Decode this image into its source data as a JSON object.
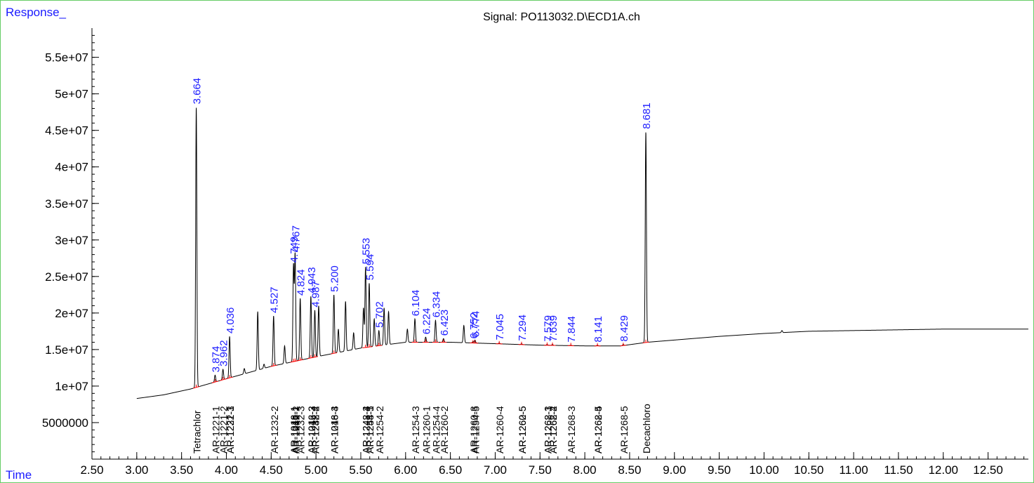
{
  "chart_data": {
    "type": "line",
    "title": "Signal: PO113032.D\\ECD1A.ch",
    "ylabel": "Response_",
    "xlabel": "Time",
    "xlim": [
      2.5,
      12.95
    ],
    "ylim": [
      0,
      59000000
    ],
    "x_ticks": [
      2.5,
      3.0,
      3.5,
      4.0,
      4.5,
      5.0,
      5.5,
      6.0,
      6.5,
      7.0,
      7.5,
      8.0,
      8.5,
      9.0,
      9.5,
      10.0,
      10.5,
      11.0,
      11.5,
      12.0,
      12.5
    ],
    "x_tick_labels": [
      "2.50",
      "3.00",
      "3.50",
      "4.00",
      "4.50",
      "5.00",
      "5.50",
      "6.00",
      "6.50",
      "7.00",
      "7.50",
      "8.00",
      "8.50",
      "9.00",
      "9.50",
      "10.00",
      "10.50",
      "11.00",
      "11.50",
      "12.00",
      "12.50"
    ],
    "y_ticks": [
      5000000,
      10000000,
      15000000,
      20000000,
      25000000,
      30000000,
      35000000,
      40000000,
      45000000,
      50000000,
      55000000
    ],
    "y_tick_labels": [
      "5000000",
      "1e+07",
      "1.5e+07",
      "2e+07",
      "2.5e+07",
      "3e+07",
      "3.5e+07",
      "4e+07",
      "4.5e+07",
      "5e+07",
      "5.5e+07"
    ],
    "baseline": [
      [
        3.0,
        8300000
      ],
      [
        3.3,
        8800000
      ],
      [
        3.6,
        9600000
      ],
      [
        4.0,
        11000000
      ],
      [
        4.5,
        12700000
      ],
      [
        5.0,
        14000000
      ],
      [
        5.5,
        15200000
      ],
      [
        6.0,
        16000000
      ],
      [
        6.5,
        16000000
      ],
      [
        7.0,
        15800000
      ],
      [
        7.5,
        15600000
      ],
      [
        8.0,
        15500000
      ],
      [
        8.4,
        15500000
      ],
      [
        8.7,
        16000000
      ],
      [
        9.0,
        16300000
      ],
      [
        9.5,
        16800000
      ],
      [
        10.0,
        17200000
      ],
      [
        10.5,
        17500000
      ],
      [
        11.0,
        17600000
      ],
      [
        11.5,
        17700000
      ],
      [
        12.0,
        17800000
      ],
      [
        12.5,
        17800000
      ],
      [
        12.95,
        17800000
      ]
    ],
    "peaks": [
      {
        "rt": 3.664,
        "height": 48200000,
        "label": "3.664"
      },
      {
        "rt": 3.874,
        "height": 11500000,
        "label": "3.874"
      },
      {
        "rt": 3.962,
        "height": 12300000,
        "label": "3.962"
      },
      {
        "rt": 4.036,
        "height": 16800000,
        "label": "4.036"
      },
      {
        "rt": 4.2,
        "height": 12400000
      },
      {
        "rt": 4.35,
        "height": 20200000
      },
      {
        "rt": 4.42,
        "height": 13000000
      },
      {
        "rt": 4.527,
        "height": 19600000,
        "label": "4.527"
      },
      {
        "rt": 4.65,
        "height": 15500000
      },
      {
        "rt": 4.749,
        "height": 26500000,
        "label": "4.749"
      },
      {
        "rt": 4.767,
        "height": 28000000,
        "label": "4.767"
      },
      {
        "rt": 4.824,
        "height": 22000000,
        "label": "4.824"
      },
      {
        "rt": 4.943,
        "height": 22300000,
        "label": "4.943"
      },
      {
        "rt": 4.987,
        "height": 20400000,
        "label": "4.987"
      },
      {
        "rt": 5.03,
        "height": 21000000
      },
      {
        "rt": 5.2,
        "height": 22500000,
        "label": "5.200"
      },
      {
        "rt": 5.25,
        "height": 17800000
      },
      {
        "rt": 5.33,
        "height": 21600000
      },
      {
        "rt": 5.42,
        "height": 17300000
      },
      {
        "rt": 5.53,
        "height": 20700000
      },
      {
        "rt": 5.553,
        "height": 26300000,
        "label": "5.553"
      },
      {
        "rt": 5.594,
        "height": 24100000,
        "label": "5.594"
      },
      {
        "rt": 5.65,
        "height": 19200000
      },
      {
        "rt": 5.702,
        "height": 17600000,
        "label": "5.702"
      },
      {
        "rt": 5.76,
        "height": 20700000
      },
      {
        "rt": 5.81,
        "height": 20200000
      },
      {
        "rt": 6.02,
        "height": 17800000
      },
      {
        "rt": 6.104,
        "height": 19200000,
        "label": "6.104"
      },
      {
        "rt": 6.224,
        "height": 16700000,
        "label": "6.224"
      },
      {
        "rt": 6.334,
        "height": 19000000,
        "label": "6.334"
      },
      {
        "rt": 6.423,
        "height": 16500000,
        "label": "6.423"
      },
      {
        "rt": 6.65,
        "height": 18300000
      },
      {
        "rt": 6.752,
        "height": 16100000,
        "label": "6.752"
      },
      {
        "rt": 6.774,
        "height": 16300000,
        "label": "6.774"
      },
      {
        "rt": 7.045,
        "height": 15900000,
        "label": "7.045"
      },
      {
        "rt": 7.294,
        "height": 15800000,
        "label": "7.294"
      },
      {
        "rt": 7.579,
        "height": 15700000,
        "label": "7.579"
      },
      {
        "rt": 7.639,
        "height": 15700000,
        "label": "7.639"
      },
      {
        "rt": 7.844,
        "height": 15600000,
        "label": "7.844"
      },
      {
        "rt": 8.141,
        "height": 15600000,
        "label": "8.141"
      },
      {
        "rt": 8.429,
        "height": 15700000,
        "label": "8.429"
      },
      {
        "rt": 8.681,
        "height": 44800000,
        "label": "8.681"
      },
      {
        "rt": 10.2,
        "height": 17600000
      }
    ],
    "compound_labels": [
      {
        "x": 3.664,
        "text": "Tetrachlor"
      },
      {
        "x": 3.874,
        "text": "AR-1221-1"
      },
      {
        "x": 3.962,
        "text": "AR-1221-2"
      },
      {
        "x": 4.036,
        "text": "AR-1232-1"
      },
      {
        "x": 4.036,
        "text": "AR-1221-3"
      },
      {
        "x": 4.527,
        "text": "AR-1232-2"
      },
      {
        "x": 4.749,
        "text": "AR-1016-1"
      },
      {
        "x": 4.749,
        "text": "AR-1248-1"
      },
      {
        "x": 4.767,
        "text": "AR-1242-1"
      },
      {
        "x": 4.767,
        "text": "AR-1016-2"
      },
      {
        "x": 4.824,
        "text": "AR-1232-3"
      },
      {
        "x": 4.943,
        "text": "AR-1242-2"
      },
      {
        "x": 4.943,
        "text": "AR-1016-3"
      },
      {
        "x": 4.987,
        "text": "AR-1232-4"
      },
      {
        "x": 4.987,
        "text": "AR-1248-2"
      },
      {
        "x": 5.2,
        "text": "AR-1016-4"
      },
      {
        "x": 5.2,
        "text": "AR-1248-3"
      },
      {
        "x": 5.553,
        "text": "AR-1242-3"
      },
      {
        "x": 5.553,
        "text": "AR-1248-4"
      },
      {
        "x": 5.594,
        "text": "AR-1254-1"
      },
      {
        "x": 5.594,
        "text": "AR-1248-5"
      },
      {
        "x": 5.702,
        "text": "AR-1254-2"
      },
      {
        "x": 6.104,
        "text": "AR-1254-3"
      },
      {
        "x": 6.224,
        "text": "AR-1260-1"
      },
      {
        "x": 6.334,
        "text": "AR-1254-4"
      },
      {
        "x": 6.423,
        "text": "AR-1260-2"
      },
      {
        "x": 6.752,
        "text": "AR-1260-3"
      },
      {
        "x": 6.774,
        "text": "AR-1254-5"
      },
      {
        "x": 7.045,
        "text": "AR-1260-4"
      },
      {
        "x": 7.294,
        "text": "AR-1262-5"
      },
      {
        "x": 7.294,
        "text": "AR-1260-5"
      },
      {
        "x": 7.579,
        "text": "AR-1268-1"
      },
      {
        "x": 7.579,
        "text": "AR-1262-3"
      },
      {
        "x": 7.639,
        "text": "AR-1268-2"
      },
      {
        "x": 7.639,
        "text": "AR-1262-4"
      },
      {
        "x": 7.844,
        "text": "AR-1268-3"
      },
      {
        "x": 8.141,
        "text": "AR-1268-4"
      },
      {
        "x": 8.141,
        "text": "AR-1262-5"
      },
      {
        "x": 8.429,
        "text": "AR-1268-5"
      },
      {
        "x": 8.681,
        "text": "Decachloro"
      }
    ],
    "colors": {
      "signal": "#000000",
      "peak_labels": "#1a1aff",
      "baseline_marks": "#ff0000",
      "axis_titles": "#1a1aff",
      "frame": "#66cc66"
    },
    "grid": false,
    "legend": "none"
  }
}
